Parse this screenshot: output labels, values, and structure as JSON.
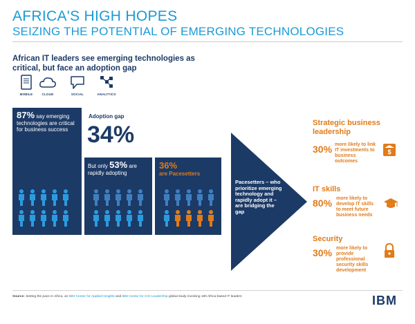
{
  "title": {
    "line1": "AFRICA'S HIGH HOPES",
    "line2": "SEIZING THE POTENTIAL OF EMERGING TECHNOLOGIES"
  },
  "headline": "African IT leaders see emerging technologies as critical, but face an adoption gap",
  "technologies": [
    {
      "label": "MOBILE",
      "icon": "mobile-icon"
    },
    {
      "label": "CLOUD",
      "icon": "cloud-icon"
    },
    {
      "label": "SOCIAL",
      "icon": "speech-bubble-icon"
    },
    {
      "label": "ANALYTICS",
      "icon": "analytics-icon"
    }
  ],
  "panel1": {
    "pct": "87%",
    "text1": " say emerging",
    "text2": "technologies are critical",
    "text3": "for business success",
    "people": 10
  },
  "adoption_gap": {
    "label": "Adoption gap",
    "value": "34%"
  },
  "panel2": {
    "prefix": "But only ",
    "pct": "53%",
    "suffix": " are",
    "text2": "rapidly adopting"
  },
  "panel3": {
    "pct": "36%",
    "text": "are Pacesetters"
  },
  "arrow": {
    "text": "Pacesetters – who prioritize emerging technology and rapidly adopt it – are bridging the gap"
  },
  "sections": [
    {
      "title": "Strategic business leadership",
      "pct": "30%",
      "desc": "more likely to link IT investments to business outcomes",
      "icon": "dollar-icon"
    },
    {
      "title": "IT skills",
      "pct": "80%",
      "desc": "more likely to develop IT skills to meet future business needs",
      "icon": "graduation-cap-icon"
    },
    {
      "title": "Security",
      "pct": "30%",
      "desc": "more likely to provide professional security skills development",
      "icon": "padlock-icon"
    }
  ],
  "source": {
    "label": "Source:",
    "text1": " Setting the pace in Africa, an ",
    "link1": "IBM Center for Applied Insights",
    "text2": " and ",
    "link2": "IBM Center for CIO Leadership",
    "text3": " global study involving 180 Africa-based IT leaders"
  },
  "logo": "IBM",
  "colors": {
    "navy": "#1c3a66",
    "blue": "#1a9ad6",
    "orange": "#e07b1a",
    "person_light": "#2b9be0"
  }
}
